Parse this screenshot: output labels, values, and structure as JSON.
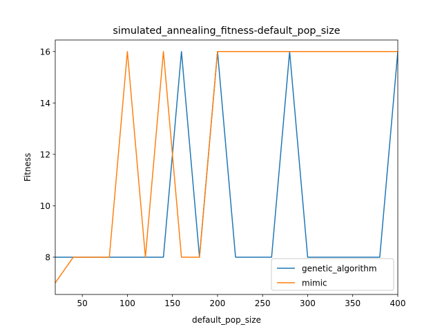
{
  "chart_data": {
    "type": "line",
    "title": "simulated_annealing_fitness-default_pop_size",
    "xlabel": "default_pop_size",
    "ylabel": "Fitness",
    "xlim": [
      20,
      400
    ],
    "ylim": [
      6.55,
      16.45
    ],
    "xticks": [
      50,
      100,
      150,
      200,
      250,
      300,
      350,
      400
    ],
    "yticks": [
      8,
      10,
      12,
      14,
      16
    ],
    "legend_position": "lower-right",
    "grid": false,
    "x": [
      20,
      40,
      60,
      80,
      100,
      120,
      140,
      160,
      180,
      200,
      220,
      240,
      260,
      280,
      300,
      320,
      340,
      360,
      380,
      400
    ],
    "series": [
      {
        "name": "genetic_algorithm",
        "color": "#1f77b4",
        "values": [
          8,
          8,
          8,
          8,
          8,
          8,
          8,
          16,
          8,
          16,
          8,
          8,
          8,
          16,
          8,
          8,
          8,
          8,
          8,
          16
        ]
      },
      {
        "name": "mimic",
        "color": "#ff7f0e",
        "values": [
          7,
          8,
          8,
          8,
          16,
          8,
          16,
          8,
          8,
          16,
          16,
          16,
          16,
          16,
          16,
          16,
          16,
          16,
          16,
          16
        ]
      }
    ]
  }
}
